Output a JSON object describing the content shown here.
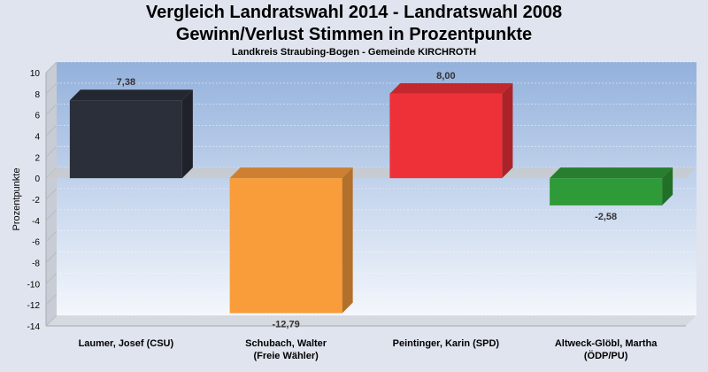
{
  "chart_data": {
    "type": "bar",
    "title": "Vergleich Landratswahl 2014 - Landratswahl 2008",
    "subtitle": "Gewinn/Verlust Stimmen in Prozentpunkte",
    "caption": "Landkreis Straubing-Bogen - Gemeinde KIRCHROTH",
    "ylabel": "Prozentpunkte",
    "ylim": [
      -14,
      10
    ],
    "yticks": [
      10,
      8,
      6,
      4,
      2,
      0,
      -2,
      -4,
      -6,
      -8,
      -10,
      -12,
      -14
    ],
    "categories": [
      [
        "Laumer, Josef (CSU)"
      ],
      [
        "Schubach, Walter",
        "(Freie Wähler)"
      ],
      [
        "Peintinger, Karin (SPD)"
      ],
      [
        "Altweck-Glöbl, Martha",
        "(ÖDP/PU)"
      ]
    ],
    "values": [
      7.38,
      -12.79,
      8.0,
      -2.58
    ],
    "value_labels": [
      "7,38",
      "-12,79",
      "8,00",
      "-2,58"
    ],
    "colors": [
      "#2b2f3a",
      "#f99c3a",
      "#ee3138",
      "#2f9a38"
    ],
    "grid": true
  }
}
